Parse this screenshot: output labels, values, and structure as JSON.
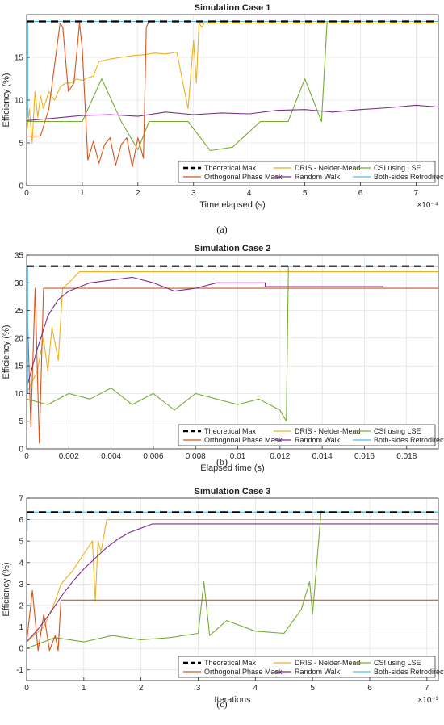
{
  "chart_data": [
    {
      "type": "line",
      "title": "Simulation Case 1",
      "xlabel": "Time elapsed (s)",
      "ylabel": "Efficiency (%)",
      "x_exponent": "×10⁻⁴",
      "xlim": [
        0,
        7.4
      ],
      "ylim": [
        0,
        20
      ],
      "xticks": [
        0,
        1,
        2,
        3,
        4,
        5,
        6,
        7
      ],
      "yticks": [
        0,
        5,
        10,
        15
      ],
      "grid": true,
      "caption": "(a)",
      "legend_position": "bottom-right",
      "legend": [
        "Theoretical Max",
        "DRIS - Nelder-Mead",
        "CSI using LSE",
        "Orthogonal Phase Mask",
        "Random Walk",
        "Both-sides Retrodirective"
      ],
      "series": [
        {
          "name": "Theoretical Max",
          "color": "#000000",
          "style": "dashed",
          "x": [
            0,
            7.4
          ],
          "y": [
            19.2,
            19.2
          ]
        },
        {
          "name": "DRIS - Nelder-Mead",
          "color": "#EDB120",
          "x": [
            0,
            0.05,
            0.1,
            0.15,
            0.2,
            0.25,
            0.3,
            0.4,
            0.5,
            0.6,
            0.7,
            0.8,
            0.9,
            1.0,
            1.1,
            1.2,
            1.3,
            1.5,
            1.7,
            1.9,
            2.1,
            2.3,
            2.5,
            2.7,
            2.9,
            3.0,
            3.05,
            3.1,
            3.15,
            3.2,
            3.3,
            3.5,
            4.0,
            5.0,
            6.0,
            7.4
          ],
          "y": [
            6,
            9,
            5,
            11,
            8,
            10.5,
            9,
            11,
            10,
            11.5,
            12,
            12,
            12.5,
            12.3,
            12.6,
            12.8,
            14.5,
            14.8,
            15,
            15.2,
            15.3,
            15.5,
            15.4,
            15.6,
            9,
            17,
            12,
            19,
            18.5,
            19.1,
            19,
            19,
            19,
            19,
            19,
            19
          ]
        },
        {
          "name": "CSI using LSE",
          "color": "#77AC30",
          "x": [
            0,
            0.8,
            1.0,
            1.35,
            1.7,
            2.0,
            2.2,
            2.9,
            3.3,
            3.7,
            4.2,
            4.7,
            5.0,
            5.3,
            5.4,
            7.4
          ],
          "y": [
            7.5,
            7.5,
            7.5,
            12.5,
            7.5,
            4.2,
            7.5,
            7.5,
            4.1,
            4.5,
            7.5,
            7.5,
            12.5,
            7.5,
            19.2,
            19.2
          ]
        },
        {
          "name": "Orthogonal Phase Mask",
          "color": "#D95319",
          "x": [
            0,
            0.25,
            0.4,
            0.5,
            0.6,
            0.65,
            0.75,
            0.85,
            0.95,
            1.0,
            1.1,
            1.2,
            1.3,
            1.4,
            1.5,
            1.6,
            1.7,
            1.8,
            1.9,
            2.0,
            2.1,
            2.15,
            2.2,
            7.4
          ],
          "y": [
            5.8,
            5.8,
            9,
            14,
            19,
            18.5,
            11,
            12,
            19,
            16,
            3,
            5.2,
            2.6,
            4.8,
            5.6,
            2.4,
            4.8,
            5.6,
            2.2,
            5.6,
            3.2,
            18.5,
            19.2,
            19.2
          ]
        },
        {
          "name": "Random Walk",
          "color": "#7E2F8E",
          "x": [
            0,
            0.5,
            1.0,
            1.5,
            2.0,
            2.5,
            3.0,
            3.5,
            4.0,
            4.5,
            5.0,
            5.5,
            6.0,
            6.5,
            7.0,
            7.4
          ],
          "y": [
            7.6,
            7.9,
            8.2,
            8.3,
            8.1,
            8.6,
            8.3,
            8.5,
            8.4,
            8.8,
            8.9,
            8.6,
            8.9,
            9.1,
            9.4,
            9.2
          ]
        },
        {
          "name": "Both-sides Retrodirective",
          "color": "#4DBEEE",
          "x": [
            0,
            0.02,
            0.02,
            7.4
          ],
          "y": [
            8,
            8,
            19.2,
            19.2
          ]
        }
      ]
    },
    {
      "type": "line",
      "title": "Simulation Case 2",
      "xlabel": "Elapsed time (s)",
      "ylabel": "Efficiency (%)",
      "xlim": [
        0,
        0.0195
      ],
      "ylim": [
        0,
        35
      ],
      "xticks": [
        0,
        0.002,
        0.004,
        0.006,
        0.008,
        0.01,
        0.012,
        0.014,
        0.016,
        0.018
      ],
      "yticks": [
        0,
        5,
        10,
        15,
        20,
        25,
        30,
        35
      ],
      "grid": true,
      "caption": "(b)",
      "legend_position": "bottom-right",
      "legend": [
        "Theoretical Max",
        "DRIS - Nelder-Mead",
        "CSI using LSE",
        "Orthogonal Phase Mask",
        "Random Walk",
        "Both-sides Retrodirective"
      ],
      "series": [
        {
          "name": "Theoretical Max",
          "color": "#000000",
          "style": "dashed",
          "x": [
            0,
            0.0195
          ],
          "y": [
            33,
            33
          ]
        },
        {
          "name": "DRIS - Nelder-Mead",
          "color": "#EDB120",
          "x": [
            0,
            0.0005,
            0.0008,
            0.001,
            0.0012,
            0.0015,
            0.0017,
            0.002,
            0.0025,
            0.003,
            0.005,
            0.01,
            0.0195
          ],
          "y": [
            10,
            14,
            20,
            14,
            22,
            16,
            29,
            30,
            32,
            32,
            32,
            32,
            32
          ]
        },
        {
          "name": "CSI using LSE",
          "color": "#77AC30",
          "x": [
            0,
            0.001,
            0.002,
            0.003,
            0.004,
            0.005,
            0.006,
            0.007,
            0.008,
            0.009,
            0.01,
            0.011,
            0.012,
            0.0123,
            0.0124,
            0.0195
          ],
          "y": [
            9,
            8,
            10,
            9,
            11,
            8,
            10,
            7,
            10,
            9,
            8,
            9,
            7,
            5,
            33,
            33
          ]
        },
        {
          "name": "Orthogonal Phase Mask",
          "color": "#D95319",
          "x": [
            0,
            0.0002,
            0.0004,
            0.0006,
            0.0008,
            0.0009,
            0.0195
          ],
          "y": [
            29,
            4,
            29,
            1,
            29,
            29,
            29
          ]
        },
        {
          "name": "Random Walk",
          "color": "#7E2F8E",
          "x": [
            0,
            0.0005,
            0.001,
            0.0015,
            0.002,
            0.003,
            0.004,
            0.005,
            0.006,
            0.007,
            0.008,
            0.009,
            0.01,
            0.0113,
            0.0113,
            0.0169
          ],
          "y": [
            11,
            18,
            24,
            27,
            28.5,
            30,
            30.5,
            31,
            30,
            28.5,
            29,
            30,
            30,
            30,
            29.3,
            29.3
          ]
        },
        {
          "name": "Both-sides Retrodirective",
          "color": "#4DBEEE",
          "x": [
            0,
            5e-05,
            5e-05,
            0.0195
          ],
          "y": [
            10,
            10,
            33,
            33
          ]
        }
      ]
    },
    {
      "type": "line",
      "title": "Simulation Case 3",
      "xlabel": "Iterations",
      "ylabel": "Efficiency (%)",
      "x_exponent": "×10⁻³",
      "xlim": [
        0,
        7.2
      ],
      "ylim": [
        -1.5,
        7
      ],
      "xticks": [
        0,
        1,
        2,
        3,
        4,
        5,
        6,
        7
      ],
      "yticks": [
        -1,
        0,
        1,
        2,
        3,
        4,
        5,
        6,
        7
      ],
      "grid": true,
      "caption": "(c)",
      "legend_position": "bottom-right",
      "legend": [
        "Theoretical Max",
        "DRIS - Nelder-Mead",
        "CSI using LSE",
        "Orthogonal Phase Mask",
        "Random Walk",
        "Both-sides Retrodirective"
      ],
      "series": [
        {
          "name": "Theoretical Max",
          "color": "#000000",
          "style": "dashed",
          "x": [
            0,
            7.2
          ],
          "y": [
            6.35,
            6.35
          ]
        },
        {
          "name": "DRIS - Nelder-Mead",
          "color": "#EDB120",
          "x": [
            0,
            0.3,
            0.5,
            0.6,
            0.8,
            1.0,
            1.15,
            1.2,
            1.25,
            1.3,
            1.4,
            1.5,
            7.2
          ],
          "y": [
            0.3,
            1,
            2.2,
            3,
            3.6,
            4.4,
            5,
            2.2,
            5,
            4.5,
            6,
            6,
            6
          ]
        },
        {
          "name": "CSI using LSE",
          "color": "#77AC30",
          "x": [
            0,
            0.5,
            1.0,
            1.5,
            2.0,
            2.5,
            3.0,
            3.1,
            3.2,
            3.5,
            4.0,
            4.5,
            4.8,
            4.95,
            5.0,
            5.15,
            5.2,
            7.2
          ],
          "y": [
            0,
            0.5,
            0.3,
            0.6,
            0.4,
            0.5,
            0.7,
            3.1,
            0.6,
            1.3,
            0.8,
            0.7,
            1.8,
            3.1,
            1.6,
            6.4,
            6.35,
            6.35
          ]
        },
        {
          "name": "Orthogonal Phase Mask",
          "color": "#D95319",
          "x": [
            0,
            0.1,
            0.2,
            0.3,
            0.4,
            0.5,
            0.55,
            0.6,
            7.2
          ],
          "y": [
            0.3,
            2.7,
            -0.1,
            1.6,
            -0.1,
            0.6,
            -0.1,
            2.25,
            2.25
          ]
        },
        {
          "name": "Random Walk",
          "color": "#7E2F8E",
          "x": [
            0,
            0.2,
            0.4,
            0.6,
            0.8,
            1.0,
            1.2,
            1.4,
            1.6,
            1.8,
            2.0,
            2.2,
            2.2,
            7.2
          ],
          "y": [
            0.3,
            0.9,
            1.6,
            2.4,
            3.1,
            3.7,
            4.2,
            4.7,
            5.1,
            5.4,
            5.6,
            5.8,
            5.8,
            5.8
          ]
        },
        {
          "name": "Both-sides Retrodirective",
          "color": "#4DBEEE",
          "x": [
            0,
            0.01,
            0.01,
            7.2
          ],
          "y": [
            5.5,
            5.5,
            6.35,
            6.35
          ]
        }
      ]
    }
  ]
}
